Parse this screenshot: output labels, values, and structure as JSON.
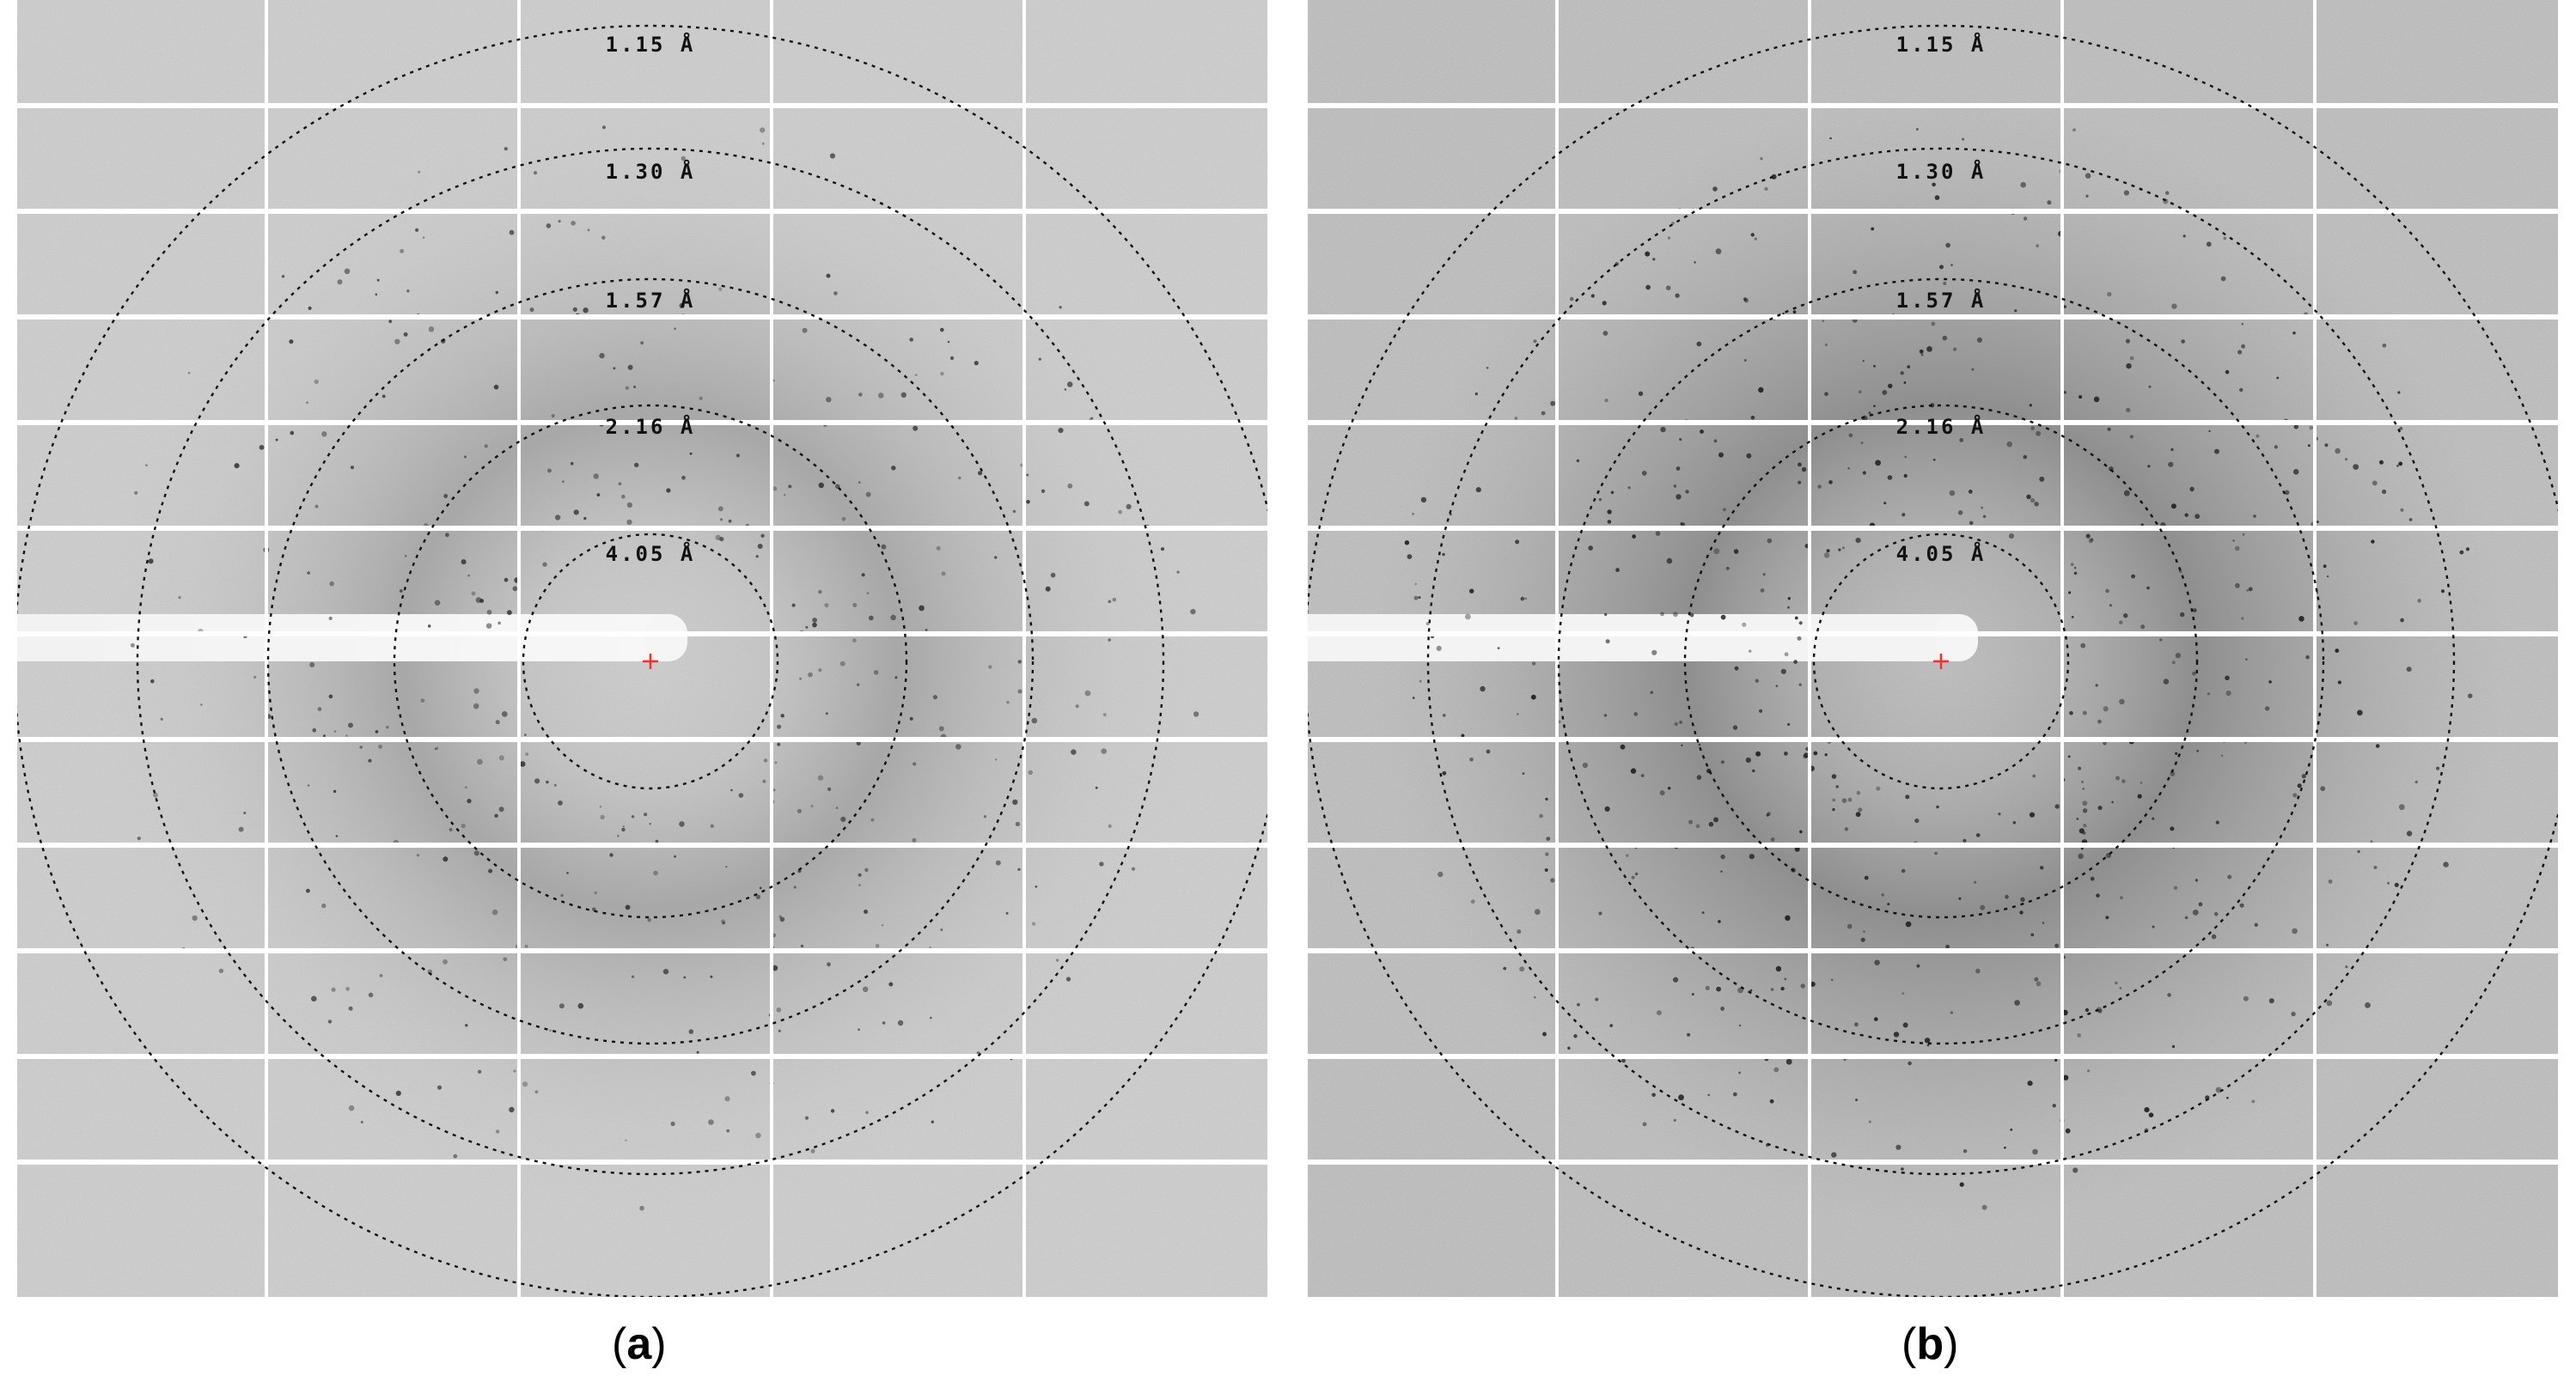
{
  "panels": [
    {
      "id": "a",
      "caption_open": "(",
      "caption_letter": "a",
      "caption_close": ")",
      "rings": [
        "1.15 Å",
        "1.30 Å",
        "1.57 Å",
        "2.16 Å",
        "4.05 Å"
      ],
      "background_tone": "#d2d2d2",
      "diffuse_ring_tone": "#7a7a7a"
    },
    {
      "id": "b",
      "caption_open": "(",
      "caption_letter": "b",
      "caption_close": ")",
      "rings": [
        "1.15 Å",
        "1.30 Å",
        "1.57 Å",
        "2.16 Å",
        "4.05 Å"
      ],
      "background_tone": "#c4c4c4",
      "diffuse_ring_tone": "#5e5e5e"
    }
  ],
  "beam_center_color": "#ff2a2a",
  "grid_line_color": "#ffffff"
}
